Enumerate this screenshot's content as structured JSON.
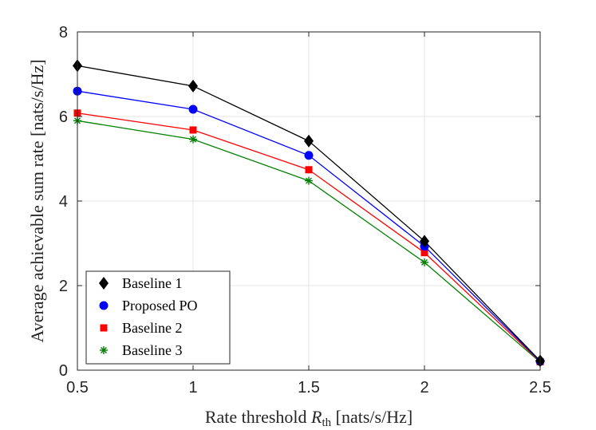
{
  "chart_data": {
    "type": "line",
    "title": "",
    "xlabel_prefix": "Rate threshold ",
    "xlabel_symbol": "R",
    "xlabel_subscript": "th",
    "xlabel_suffix": " [nats/s/Hz]",
    "ylabel": "Average achievable sum rate [nats/s/Hz]",
    "xlim": [
      0.5,
      2.5
    ],
    "ylim": [
      0,
      8
    ],
    "xticks": [
      0.5,
      1,
      1.5,
      2,
      2.5
    ],
    "xtick_labels": [
      "0.5",
      "1",
      "1.5",
      "2",
      "2.5"
    ],
    "yticks": [
      0,
      2,
      4,
      6,
      8
    ],
    "ytick_labels": [
      "0",
      "2",
      "4",
      "6",
      "8"
    ],
    "grid": true,
    "legend_position": "bottom-left",
    "x": [
      0.5,
      1,
      1.5,
      2,
      2.5
    ],
    "series": [
      {
        "name": "Baseline 1",
        "color": "#000000",
        "marker": "diamond",
        "values": [
          7.2,
          6.72,
          5.42,
          3.05,
          0.22
        ]
      },
      {
        "name": "Proposed PO",
        "color": "#0000ff",
        "marker": "circle",
        "values": [
          6.6,
          6.17,
          5.08,
          2.93,
          0.21
        ]
      },
      {
        "name": "Baseline 2",
        "color": "#ff0000",
        "marker": "square",
        "values": [
          6.08,
          5.68,
          4.74,
          2.78,
          0.2
        ]
      },
      {
        "name": "Baseline 3",
        "color": "#008000",
        "marker": "asterisk",
        "values": [
          5.9,
          5.46,
          4.48,
          2.55,
          0.19
        ]
      }
    ]
  }
}
